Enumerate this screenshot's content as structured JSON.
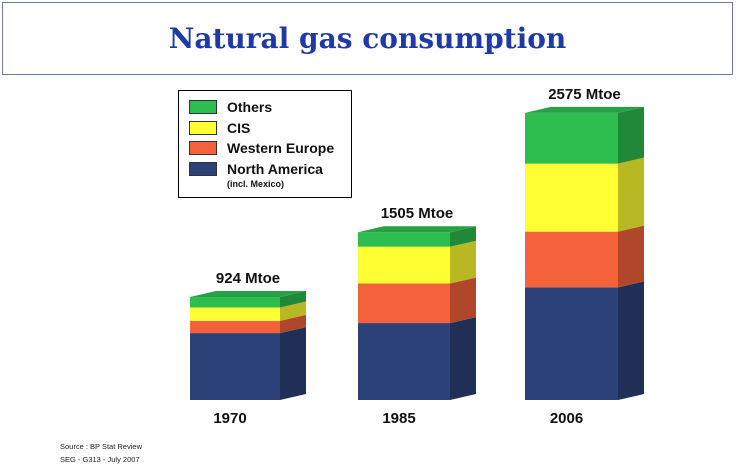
{
  "title": "Natural gas consumption",
  "legend_note": "(incl. Mexico)",
  "source_lines": [
    "Source : BP Stat Review",
    "SEG - G313 - July 2007"
  ],
  "colors": {
    "Others": "#2ebd4f",
    "CIS": "#ffff33",
    "Western Europe": "#f4623c",
    "North America": "#2c4178"
  },
  "chart_data": {
    "type": "bar",
    "stacked": true,
    "style": "3d",
    "categories": [
      "1970",
      "1985",
      "2006"
    ],
    "totals_labels": [
      "924 Mtoe",
      "1505 Mtoe",
      "2575 Mtoe"
    ],
    "totals": [
      924,
      1505,
      2575
    ],
    "series": [
      {
        "name": "North America",
        "values": [
          600,
          690,
          1010
        ]
      },
      {
        "name": "Western Europe",
        "values": [
          110,
          355,
          500
        ]
      },
      {
        "name": "CIS",
        "values": [
          120,
          330,
          610
        ]
      },
      {
        "name": "Others",
        "values": [
          94,
          130,
          455
        ]
      }
    ],
    "legend_position": "top-left",
    "grid": false,
    "ylim": [
      0,
      2575
    ]
  }
}
